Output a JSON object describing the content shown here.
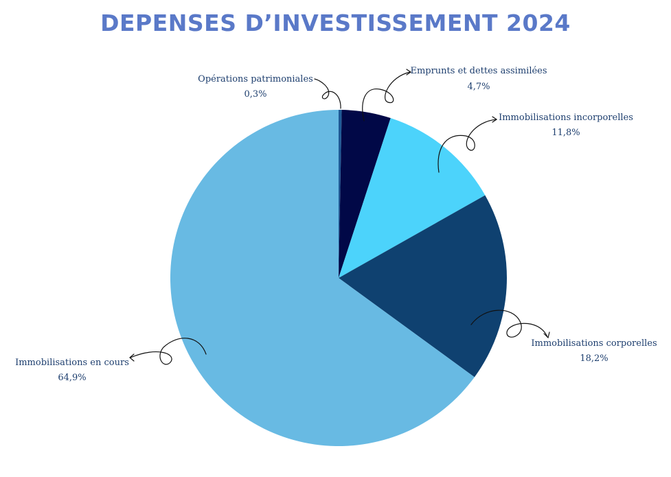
{
  "chart_data": {
    "type": "pie",
    "title": "DEPENSES D’INVESTISSEMENT 2024",
    "slices": [
      {
        "label": "Opérations patrimoniales",
        "value": 0.3,
        "display": "0,3%",
        "color": "#1f5a96"
      },
      {
        "label": "Emprunts et dettes assimilées",
        "value": 4.7,
        "display": "4,7%",
        "color": "#010847"
      },
      {
        "label": "Immobilisations incorporelles",
        "value": 11.8,
        "display": "11,8%",
        "color": "#4cd3fb"
      },
      {
        "label": "Immobilisations corporelles",
        "value": 18.2,
        "display": "18,2%",
        "color": "#0f4170"
      },
      {
        "label": "Immobilisations en cours",
        "value": 64.9,
        "display": "64,9%",
        "color": "#68bae3"
      }
    ],
    "start_angle": "top",
    "direction": "clockwise"
  }
}
